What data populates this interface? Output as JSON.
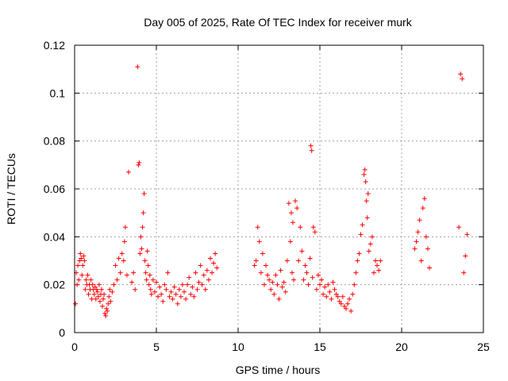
{
  "chart_data": {
    "type": "scatter",
    "title": "Day 005 of 2025, Rate Of TEC Index for receiver murk",
    "xlabel": "GPS time / hours",
    "ylabel": "ROTI / TECUs",
    "xlim": [
      0,
      25
    ],
    "ylim": [
      0,
      0.12
    ],
    "xticks": [
      "0",
      "5",
      "10",
      "15",
      "20",
      "25"
    ],
    "yticks": [
      "0",
      "0.02",
      "0.04",
      "0.06",
      "0.08",
      "0.1",
      "0.12"
    ],
    "xtick_values": [
      0,
      5,
      10,
      15,
      20,
      25
    ],
    "ytick_values": [
      0,
      0.02,
      0.04,
      0.06,
      0.08,
      0.1,
      0.12
    ],
    "grid": true,
    "marker": "plus",
    "color": "#ff0000",
    "series": [
      {
        "x": [
          0.05,
          0.1,
          0.15,
          0.2,
          0.25,
          0.3,
          0.35,
          0.4,
          0.45,
          0.5,
          0.55,
          0.6,
          0.65,
          0.7,
          0.75,
          0.8,
          0.85,
          0.9,
          0.95,
          1.0,
          1.05,
          1.1,
          1.15,
          1.2,
          1.25,
          1.3,
          1.35,
          1.4,
          1.45,
          1.5,
          1.55,
          1.6,
          1.65,
          1.7,
          1.75,
          1.8,
          1.85,
          1.9,
          1.95,
          2.0,
          2.05,
          2.1,
          2.15,
          2.2,
          2.3,
          2.4,
          2.5,
          2.6,
          2.7,
          2.8,
          2.9,
          3.0,
          3.05,
          3.1,
          3.2,
          3.3,
          3.5,
          3.6,
          3.7,
          3.85,
          3.9,
          3.95,
          4.0,
          4.05,
          4.1,
          4.15,
          4.2,
          4.25,
          4.3,
          4.35,
          4.4,
          4.45,
          4.5,
          4.55,
          4.6,
          4.65,
          4.7,
          4.8,
          4.9,
          5.0,
          5.1,
          5.2,
          5.3,
          5.4,
          5.5,
          5.6,
          5.7,
          5.8,
          5.9,
          6.0,
          6.1,
          6.2,
          6.3,
          6.4,
          6.5,
          6.6,
          6.7,
          6.8,
          6.9,
          7.0,
          7.1,
          7.2,
          7.3,
          7.4,
          7.5,
          7.6,
          7.7,
          7.8,
          7.9,
          8.0,
          8.1,
          8.2,
          8.3,
          8.4,
          8.5,
          8.6,
          8.7
        ],
        "y": [
          0.012,
          0.025,
          0.02,
          0.028,
          0.022,
          0.03,
          0.033,
          0.031,
          0.024,
          0.028,
          0.032,
          0.03,
          0.018,
          0.022,
          0.02,
          0.024,
          0.016,
          0.02,
          0.018,
          0.022,
          0.014,
          0.02,
          0.018,
          0.016,
          0.019,
          0.014,
          0.018,
          0.017,
          0.015,
          0.02,
          0.013,
          0.016,
          0.018,
          0.011,
          0.014,
          0.016,
          0.008,
          0.007,
          0.01,
          0.009,
          0.012,
          0.015,
          0.018,
          0.013,
          0.017,
          0.02,
          0.028,
          0.022,
          0.031,
          0.025,
          0.033,
          0.03,
          0.038,
          0.044,
          0.024,
          0.067,
          0.021,
          0.025,
          0.018,
          0.111,
          0.07,
          0.071,
          0.033,
          0.04,
          0.035,
          0.044,
          0.05,
          0.058,
          0.03,
          0.025,
          0.022,
          0.034,
          0.028,
          0.02,
          0.024,
          0.018,
          0.016,
          0.022,
          0.017,
          0.021,
          0.015,
          0.019,
          0.016,
          0.013,
          0.02,
          0.018,
          0.025,
          0.015,
          0.017,
          0.014,
          0.019,
          0.016,
          0.012,
          0.018,
          0.015,
          0.02,
          0.017,
          0.014,
          0.02,
          0.023,
          0.016,
          0.019,
          0.015,
          0.025,
          0.018,
          0.021,
          0.028,
          0.02,
          0.024,
          0.018,
          0.026,
          0.022,
          0.031,
          0.025,
          0.029,
          0.033,
          0.027
        ]
      },
      {
        "x": [
          11.0,
          11.1,
          11.2,
          11.3,
          11.4,
          11.5,
          11.6,
          11.7,
          11.8,
          11.9,
          12.0,
          12.1,
          12.2,
          12.3,
          12.4,
          12.5,
          12.6,
          12.7,
          12.8,
          12.9,
          13.0,
          13.1,
          13.2,
          13.25,
          13.3,
          13.35,
          13.4,
          13.5,
          13.6,
          13.7,
          13.8,
          13.9,
          14.0,
          14.1,
          14.2,
          14.3,
          14.4,
          14.45,
          14.5,
          14.55,
          14.6,
          14.7,
          14.8,
          14.9,
          15.0,
          15.1,
          15.2,
          15.3,
          15.4,
          15.5,
          15.6,
          15.7,
          15.8,
          15.9,
          16.0,
          16.1,
          16.2,
          16.3,
          16.4,
          16.5,
          16.6,
          16.7,
          16.8,
          16.9,
          17.0,
          17.1,
          17.2,
          17.3,
          17.4,
          17.5,
          17.6,
          17.7,
          17.75,
          17.8,
          17.85,
          17.9,
          17.95,
          18.0,
          18.1,
          18.2,
          18.3,
          18.4,
          18.5,
          18.6,
          18.7,
          20.8,
          20.9,
          21.0,
          21.1,
          21.2,
          21.3,
          21.4,
          21.5,
          21.6,
          21.7,
          23.5,
          23.6,
          23.7,
          23.8,
          23.9,
          24.0
        ],
        "y": [
          0.028,
          0.03,
          0.044,
          0.038,
          0.025,
          0.033,
          0.02,
          0.028,
          0.024,
          0.022,
          0.018,
          0.021,
          0.016,
          0.024,
          0.02,
          0.014,
          0.026,
          0.019,
          0.021,
          0.017,
          0.03,
          0.054,
          0.038,
          0.05,
          0.025,
          0.046,
          0.022,
          0.055,
          0.052,
          0.03,
          0.044,
          0.034,
          0.022,
          0.028,
          0.025,
          0.02,
          0.031,
          0.078,
          0.076,
          0.023,
          0.044,
          0.042,
          0.018,
          0.024,
          0.02,
          0.022,
          0.016,
          0.019,
          0.015,
          0.02,
          0.017,
          0.014,
          0.021,
          0.018,
          0.016,
          0.015,
          0.013,
          0.012,
          0.015,
          0.011,
          0.01,
          0.012,
          0.014,
          0.009,
          0.016,
          0.02,
          0.025,
          0.03,
          0.033,
          0.041,
          0.045,
          0.066,
          0.068,
          0.063,
          0.055,
          0.048,
          0.058,
          0.034,
          0.037,
          0.04,
          0.025,
          0.03,
          0.028,
          0.026,
          0.03,
          0.035,
          0.038,
          0.042,
          0.047,
          0.03,
          0.052,
          0.056,
          0.04,
          0.035,
          0.027,
          0.044,
          0.108,
          0.106,
          0.025,
          0.032,
          0.041
        ]
      }
    ]
  }
}
